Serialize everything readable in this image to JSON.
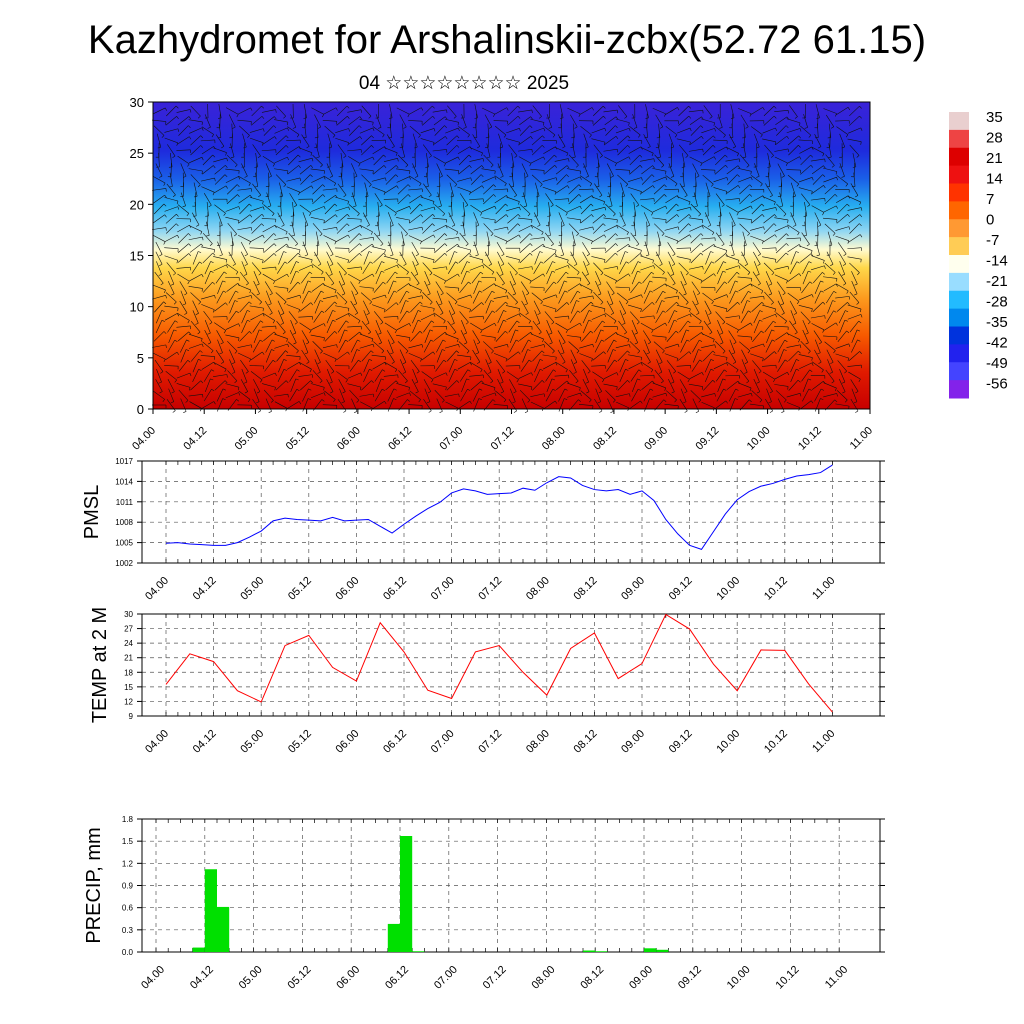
{
  "page": {
    "title": "Kazhydromet for Arshalinskii-zcbx(52.72 61.15)",
    "subtitle": "04 ☆☆☆☆☆☆☆☆ 2025"
  },
  "colors": {
    "pressure_line": "#0000ff",
    "temperature_line": "#ff0000",
    "precip_bar": "#00e000",
    "colorbar": [
      "#e9cfcf",
      "#e44",
      "#d00",
      "#e11",
      "#f30",
      "#f60",
      "#f93",
      "#fc5",
      "#ffe",
      "#9df",
      "#2bf",
      "#08e",
      "#03d",
      "#22e",
      "#44f",
      "#8322ea"
    ]
  },
  "chart_data": [
    {
      "type": "heatmap",
      "title": "",
      "xlabel": "",
      "ylabel": "",
      "x_ticks": [
        "04.00",
        "04.12",
        "05.00",
        "05.12",
        "06.00",
        "06.12",
        "07.00",
        "07.12",
        "08.00",
        "08.12",
        "09.00",
        "09.12",
        "10.00",
        "10.12",
        "11.00"
      ],
      "y_ticks": [
        "0",
        "5",
        "10",
        "15",
        "20",
        "25",
        "30"
      ],
      "ylim": [
        0,
        30
      ],
      "color_scale": {
        "labels": [
          "35",
          "28",
          "21",
          "14",
          "7",
          "0",
          "-7",
          "-14",
          "-21",
          "-28",
          "-35",
          "-42",
          "-49",
          "-56"
        ]
      },
      "temperature_bands": [
        {
          "from_level": 0,
          "to_level": 5,
          "value": 21
        },
        {
          "from_level": 5,
          "to_level": 10,
          "value": 14
        },
        {
          "from_level": 10,
          "to_level": 15,
          "value": 0
        },
        {
          "from_level": 15,
          "to_level": 20,
          "value": -21
        },
        {
          "from_level": 20,
          "to_level": 25,
          "value": -42
        },
        {
          "from_level": 25,
          "to_level": 30,
          "value": -56
        }
      ],
      "wind_barbs": true
    },
    {
      "type": "line",
      "ylabel": "PMSL",
      "x_ticks": [
        "04.00",
        "04.12",
        "05.00",
        "05.12",
        "06.00",
        "06.12",
        "07.00",
        "07.12",
        "08.00",
        "08.12",
        "09.00",
        "09.12",
        "10.00",
        "10.12",
        "11.00"
      ],
      "y_ticks": [
        "1002",
        "1005",
        "1008",
        "1011",
        "1014",
        "1017"
      ],
      "ylim": [
        1002,
        1017
      ],
      "grid": true,
      "x": [
        0,
        1,
        2,
        3,
        4,
        5,
        6,
        7,
        8,
        9,
        10,
        11,
        12,
        13,
        14,
        15,
        16,
        17,
        18,
        19,
        20,
        21,
        22,
        23,
        24,
        25,
        26,
        27,
        28,
        29,
        30,
        31,
        32,
        33,
        34,
        35,
        36,
        37,
        38,
        39,
        40,
        41,
        42,
        43,
        44,
        45,
        46,
        47,
        48,
        49,
        50,
        51,
        52,
        53,
        54,
        55,
        56
      ],
      "values": [
        1004.9,
        1005.0,
        1004.8,
        1004.7,
        1004.6,
        1004.6,
        1005.0,
        1005.8,
        1006.7,
        1008.2,
        1008.6,
        1008.4,
        1008.3,
        1008.2,
        1008.7,
        1008.2,
        1008.3,
        1008.4,
        1007.4,
        1006.4,
        1007.7,
        1008.9,
        1010.0,
        1010.9,
        1012.3,
        1012.9,
        1012.6,
        1012.1,
        1012.2,
        1012.3,
        1013.0,
        1012.7,
        1013.8,
        1014.7,
        1014.5,
        1013.4,
        1012.8,
        1012.6,
        1012.8,
        1012.1,
        1012.6,
        1011.2,
        1008.4,
        1006.3,
        1004.6,
        1004.0,
        1006.6,
        1009.2,
        1011.3,
        1012.5,
        1013.3,
        1013.7,
        1014.3,
        1014.8,
        1015.0,
        1015.3,
        1016.4
      ]
    },
    {
      "type": "line",
      "ylabel": "TEMP at 2 M",
      "x_ticks": [
        "04.00",
        "04.12",
        "05.00",
        "05.12",
        "06.00",
        "06.12",
        "07.00",
        "07.12",
        "08.00",
        "08.12",
        "09.00",
        "09.12",
        "10.00",
        "10.12",
        "11.00"
      ],
      "y_ticks": [
        "9",
        "12",
        "15",
        "18",
        "21",
        "24",
        "27",
        "30"
      ],
      "ylim": [
        9,
        30
      ],
      "grid": true,
      "x": [
        0,
        2,
        4,
        6,
        8,
        10,
        12,
        14,
        16,
        18,
        20,
        22,
        24,
        26,
        28,
        30,
        32,
        34,
        36,
        38,
        40,
        42,
        44,
        46,
        48,
        50,
        52,
        54,
        56
      ],
      "values": [
        15.5,
        21.8,
        20.2,
        14.2,
        11.9,
        23.5,
        25.6,
        19.0,
        16.2,
        28.2,
        22.2,
        14.3,
        12.6,
        22.2,
        23.5,
        18.0,
        13.3,
        22.9,
        26.1,
        16.7,
        19.8,
        29.9,
        26.9,
        19.7,
        14.2,
        22.6,
        22.5,
        15.6,
        9.8
      ]
    },
    {
      "type": "bar",
      "ylabel": "PRECIP, mm",
      "x_ticks": [
        "04.00",
        "04.12",
        "05.00",
        "05.12",
        "06.00",
        "06.12",
        "07.00",
        "07.12",
        "08.00",
        "08.12",
        "09.00",
        "09.12",
        "10.00",
        "10.12",
        "11.00"
      ],
      "y_ticks": [
        "0.0",
        "0.3",
        "0.6",
        "0.9",
        "1.2",
        "1.5",
        "1.8"
      ],
      "ylim": [
        0,
        1.8
      ],
      "grid": true,
      "x": [
        3,
        4,
        5,
        19,
        20,
        21,
        35,
        36,
        40,
        41
      ],
      "values": [
        0.06,
        1.12,
        0.61,
        0.38,
        1.57,
        0.01,
        0.02,
        0.01,
        0.05,
        0.03
      ]
    }
  ]
}
